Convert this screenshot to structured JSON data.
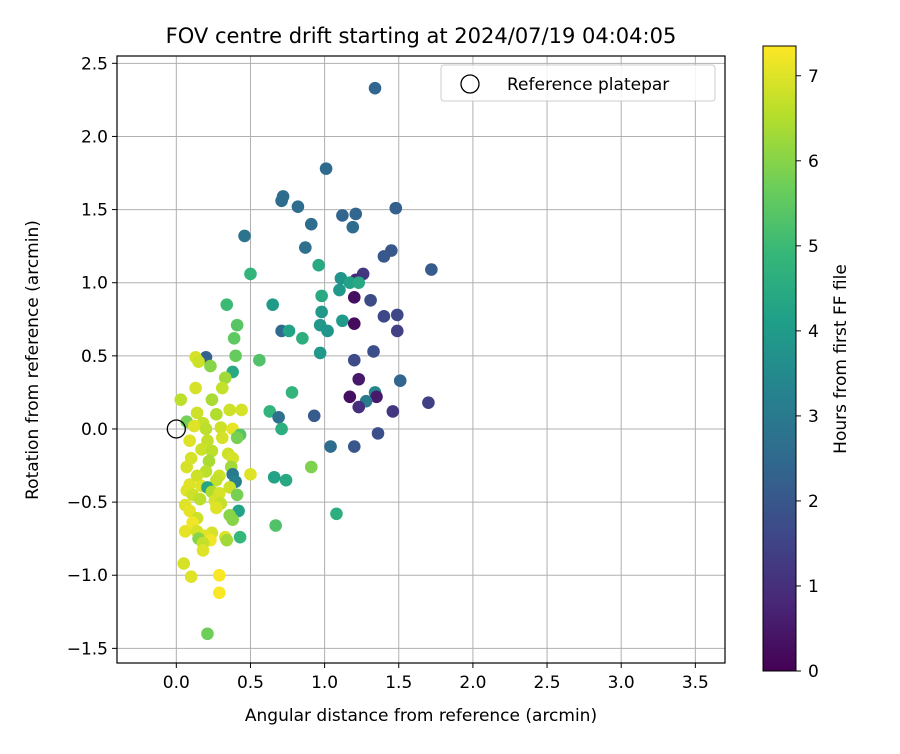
{
  "chart_data": {
    "type": "scatter",
    "title": "FOV centre drift starting at 2024/07/19 04:04:05",
    "xlabel": "Angular distance from reference (arcmin)",
    "ylabel": "Rotation from reference (arcmin)",
    "xlim": [
      -0.4,
      3.7
    ],
    "ylim": [
      -1.6,
      2.55
    ],
    "x_ticks": [
      0.0,
      0.5,
      1.0,
      1.5,
      2.0,
      2.5,
      3.0,
      3.5
    ],
    "x_tick_labels": [
      "0.0",
      "0.5",
      "1.0",
      "1.5",
      "2.0",
      "2.5",
      "3.0",
      "3.5"
    ],
    "y_ticks": [
      -1.5,
      -1.0,
      -0.5,
      0.0,
      0.5,
      1.0,
      1.5,
      2.0,
      2.5
    ],
    "y_tick_labels": [
      "−1.5",
      "−1.0",
      "−0.5",
      "0.0",
      "0.5",
      "1.0",
      "1.5",
      "2.0",
      "2.5"
    ],
    "grid": true,
    "legend": {
      "placement": "top-right",
      "entries": [
        "Reference platepar"
      ]
    },
    "reference_point": {
      "name": "Reference platepar",
      "x": 0.0,
      "y": 0.0
    },
    "colorbar": {
      "label": "Hours from first FF file",
      "range": [
        0,
        7.35
      ],
      "ticks": [
        0,
        1,
        2,
        3,
        4,
        5,
        6,
        7
      ],
      "tick_labels": [
        "0",
        "1",
        "2",
        "3",
        "4",
        "5",
        "6",
        "7"
      ],
      "colormap": "viridis",
      "colors": [
        "#440154",
        "#482878",
        "#3e4989",
        "#31688e",
        "#26828e",
        "#1f9e89",
        "#35b779",
        "#6ece58",
        "#b5de2b",
        "#fde725"
      ]
    },
    "points": [
      {
        "x": 1.34,
        "y": 2.33,
        "t": 2.4
      },
      {
        "x": 1.01,
        "y": 1.78,
        "t": 2.5
      },
      {
        "x": 0.72,
        "y": 1.59,
        "t": 2.6
      },
      {
        "x": 0.71,
        "y": 1.56,
        "t": 2.6
      },
      {
        "x": 0.82,
        "y": 1.52,
        "t": 2.6
      },
      {
        "x": 0.91,
        "y": 1.4,
        "t": 2.6
      },
      {
        "x": 1.12,
        "y": 1.46,
        "t": 2.4
      },
      {
        "x": 1.21,
        "y": 1.47,
        "t": 2.4
      },
      {
        "x": 1.48,
        "y": 1.51,
        "t": 2.2
      },
      {
        "x": 1.19,
        "y": 1.38,
        "t": 2.6
      },
      {
        "x": 0.46,
        "y": 1.32,
        "t": 2.8
      },
      {
        "x": 0.87,
        "y": 1.24,
        "t": 2.7
      },
      {
        "x": 1.45,
        "y": 1.22,
        "t": 2.0
      },
      {
        "x": 1.4,
        "y": 1.18,
        "t": 2.0
      },
      {
        "x": 0.96,
        "y": 1.12,
        "t": 4.4
      },
      {
        "x": 1.72,
        "y": 1.09,
        "t": 2.1
      },
      {
        "x": 1.26,
        "y": 1.06,
        "t": 1.2
      },
      {
        "x": 1.21,
        "y": 1.02,
        "t": 0.9
      },
      {
        "x": 1.11,
        "y": 1.03,
        "t": 3.8
      },
      {
        "x": 1.17,
        "y": 1.0,
        "t": 4.2
      },
      {
        "x": 1.23,
        "y": 1.0,
        "t": 4.4
      },
      {
        "x": 1.1,
        "y": 0.95,
        "t": 3.9
      },
      {
        "x": 1.2,
        "y": 0.9,
        "t": 0.3
      },
      {
        "x": 1.31,
        "y": 0.88,
        "t": 1.7
      },
      {
        "x": 0.98,
        "y": 0.91,
        "t": 4.4
      },
      {
        "x": 0.5,
        "y": 1.06,
        "t": 4.8
      },
      {
        "x": 0.34,
        "y": 0.85,
        "t": 5.0
      },
      {
        "x": 0.65,
        "y": 0.85,
        "t": 4.0
      },
      {
        "x": 0.98,
        "y": 0.8,
        "t": 3.9
      },
      {
        "x": 1.4,
        "y": 0.77,
        "t": 1.6
      },
      {
        "x": 1.49,
        "y": 0.78,
        "t": 1.6
      },
      {
        "x": 1.12,
        "y": 0.74,
        "t": 4.0
      },
      {
        "x": 1.2,
        "y": 0.72,
        "t": 0.2
      },
      {
        "x": 0.97,
        "y": 0.71,
        "t": 3.9
      },
      {
        "x": 1.02,
        "y": 0.67,
        "t": 3.8
      },
      {
        "x": 0.71,
        "y": 0.67,
        "t": 2.5
      },
      {
        "x": 0.76,
        "y": 0.67,
        "t": 4.2
      },
      {
        "x": 0.85,
        "y": 0.62,
        "t": 4.6
      },
      {
        "x": 1.49,
        "y": 0.67,
        "t": 1.4
      },
      {
        "x": 0.41,
        "y": 0.71,
        "t": 5.4
      },
      {
        "x": 0.39,
        "y": 0.62,
        "t": 5.5
      },
      {
        "x": 0.97,
        "y": 0.52,
        "t": 3.9
      },
      {
        "x": 1.33,
        "y": 0.53,
        "t": 1.8
      },
      {
        "x": 1.2,
        "y": 0.47,
        "t": 1.7
      },
      {
        "x": 0.4,
        "y": 0.5,
        "t": 5.6
      },
      {
        "x": 0.56,
        "y": 0.47,
        "t": 5.3
      },
      {
        "x": 0.2,
        "y": 0.49,
        "t": 2.3
      },
      {
        "x": 0.23,
        "y": 0.43,
        "t": 6.0
      },
      {
        "x": 0.38,
        "y": 0.39,
        "t": 4.4
      },
      {
        "x": 0.13,
        "y": 0.49,
        "t": 6.9
      },
      {
        "x": 0.15,
        "y": 0.46,
        "t": 6.8
      },
      {
        "x": 0.33,
        "y": 0.35,
        "t": 6.3
      },
      {
        "x": 1.23,
        "y": 0.34,
        "t": 0.5
      },
      {
        "x": 1.51,
        "y": 0.33,
        "t": 2.4
      },
      {
        "x": 0.31,
        "y": 0.28,
        "t": 6.7
      },
      {
        "x": 0.13,
        "y": 0.28,
        "t": 6.9
      },
      {
        "x": 0.78,
        "y": 0.25,
        "t": 4.8
      },
      {
        "x": 1.34,
        "y": 0.25,
        "t": 3.4
      },
      {
        "x": 1.17,
        "y": 0.22,
        "t": 0.3
      },
      {
        "x": 1.35,
        "y": 0.22,
        "t": 0.5
      },
      {
        "x": 1.7,
        "y": 0.18,
        "t": 1.4
      },
      {
        "x": 1.28,
        "y": 0.19,
        "t": 3.0
      },
      {
        "x": 0.03,
        "y": 0.2,
        "t": 6.6
      },
      {
        "x": 0.24,
        "y": 0.2,
        "t": 6.4
      },
      {
        "x": 1.23,
        "y": 0.15,
        "t": 1.0
      },
      {
        "x": 1.46,
        "y": 0.12,
        "t": 1.2
      },
      {
        "x": 0.63,
        "y": 0.12,
        "t": 4.8
      },
      {
        "x": 0.36,
        "y": 0.13,
        "t": 6.8
      },
      {
        "x": 0.44,
        "y": 0.13,
        "t": 6.9
      },
      {
        "x": 0.14,
        "y": 0.11,
        "t": 6.8
      },
      {
        "x": 0.27,
        "y": 0.1,
        "t": 6.5
      },
      {
        "x": 0.93,
        "y": 0.09,
        "t": 2.1
      },
      {
        "x": 0.69,
        "y": 0.08,
        "t": 2.7
      },
      {
        "x": 0.07,
        "y": 0.05,
        "t": 5.8
      },
      {
        "x": 0.18,
        "y": 0.04,
        "t": 6.7
      },
      {
        "x": 0.12,
        "y": 0.02,
        "t": 7.0
      },
      {
        "x": 0.2,
        "y": 0.0,
        "t": 6.6
      },
      {
        "x": 0.3,
        "y": 0.01,
        "t": 6.8
      },
      {
        "x": 0.38,
        "y": 0.0,
        "t": 7.1
      },
      {
        "x": 0.71,
        "y": 0.0,
        "t": 4.6
      },
      {
        "x": 0.43,
        "y": -0.04,
        "t": 5.4
      },
      {
        "x": 0.41,
        "y": -0.06,
        "t": 5.8
      },
      {
        "x": 1.36,
        "y": -0.03,
        "t": 1.8
      },
      {
        "x": 0.09,
        "y": -0.08,
        "t": 7.0
      },
      {
        "x": 0.21,
        "y": -0.08,
        "t": 6.7
      },
      {
        "x": 0.31,
        "y": -0.06,
        "t": 6.9
      },
      {
        "x": 1.04,
        "y": -0.12,
        "t": 2.6
      },
      {
        "x": 1.2,
        "y": -0.12,
        "t": 2.0
      },
      {
        "x": 0.17,
        "y": -0.14,
        "t": 6.8
      },
      {
        "x": 0.24,
        "y": -0.15,
        "t": 6.6
      },
      {
        "x": 0.35,
        "y": -0.17,
        "t": 6.8
      },
      {
        "x": 0.38,
        "y": -0.2,
        "t": 6.9
      },
      {
        "x": 0.1,
        "y": -0.2,
        "t": 6.9
      },
      {
        "x": 0.22,
        "y": -0.22,
        "t": 6.4
      },
      {
        "x": 0.07,
        "y": -0.26,
        "t": 6.9
      },
      {
        "x": 0.37,
        "y": -0.26,
        "t": 6.3
      },
      {
        "x": 0.91,
        "y": -0.26,
        "t": 5.9
      },
      {
        "x": 0.2,
        "y": -0.29,
        "t": 6.6
      },
      {
        "x": 0.5,
        "y": -0.31,
        "t": 7.0
      },
      {
        "x": 0.14,
        "y": -0.32,
        "t": 6.8
      },
      {
        "x": 0.29,
        "y": -0.32,
        "t": 6.8
      },
      {
        "x": 0.38,
        "y": -0.31,
        "t": 3.0
      },
      {
        "x": 0.66,
        "y": -0.33,
        "t": 4.2
      },
      {
        "x": 0.27,
        "y": -0.35,
        "t": 6.7
      },
      {
        "x": 0.4,
        "y": -0.36,
        "t": 3.2
      },
      {
        "x": 0.74,
        "y": -0.35,
        "t": 4.4
      },
      {
        "x": 0.09,
        "y": -0.38,
        "t": 7.0
      },
      {
        "x": 0.17,
        "y": -0.39,
        "t": 7.0
      },
      {
        "x": 0.21,
        "y": -0.4,
        "t": 4.3
      },
      {
        "x": 0.36,
        "y": -0.4,
        "t": 6.8
      },
      {
        "x": 0.07,
        "y": -0.42,
        "t": 7.0
      },
      {
        "x": 0.24,
        "y": -0.43,
        "t": 6.5
      },
      {
        "x": 0.29,
        "y": -0.44,
        "t": 6.9
      },
      {
        "x": 0.41,
        "y": -0.45,
        "t": 5.8
      },
      {
        "x": 0.11,
        "y": -0.45,
        "t": 6.8
      },
      {
        "x": 0.16,
        "y": -0.48,
        "t": 6.6
      },
      {
        "x": 0.26,
        "y": -0.49,
        "t": 6.9
      },
      {
        "x": 0.3,
        "y": -0.51,
        "t": 6.7
      },
      {
        "x": 0.06,
        "y": -0.52,
        "t": 7.0
      },
      {
        "x": 0.27,
        "y": -0.54,
        "t": 7.0
      },
      {
        "x": 0.09,
        "y": -0.56,
        "t": 7.1
      },
      {
        "x": 0.42,
        "y": -0.56,
        "t": 4.2
      },
      {
        "x": 0.36,
        "y": -0.59,
        "t": 6.0
      },
      {
        "x": 1.08,
        "y": -0.58,
        "t": 4.6
      },
      {
        "x": 0.14,
        "y": -0.61,
        "t": 6.8
      },
      {
        "x": 0.38,
        "y": -0.62,
        "t": 6.0
      },
      {
        "x": 0.11,
        "y": -0.64,
        "t": 7.2
      },
      {
        "x": 0.67,
        "y": -0.66,
        "t": 5.3
      },
      {
        "x": 0.06,
        "y": -0.7,
        "t": 7.1
      },
      {
        "x": 0.14,
        "y": -0.7,
        "t": 6.9
      },
      {
        "x": 0.24,
        "y": -0.71,
        "t": 6.9
      },
      {
        "x": 0.19,
        "y": -0.73,
        "t": 7.0
      },
      {
        "x": 0.33,
        "y": -0.74,
        "t": 7.0
      },
      {
        "x": 0.43,
        "y": -0.74,
        "t": 4.9
      },
      {
        "x": 0.15,
        "y": -0.75,
        "t": 6.0
      },
      {
        "x": 0.23,
        "y": -0.76,
        "t": 7.2
      },
      {
        "x": 0.34,
        "y": -0.76,
        "t": 6.3
      },
      {
        "x": 0.18,
        "y": -0.78,
        "t": 6.7
      },
      {
        "x": 0.18,
        "y": -0.83,
        "t": 7.0
      },
      {
        "x": 0.05,
        "y": -0.92,
        "t": 6.9
      },
      {
        "x": 0.29,
        "y": -1.0,
        "t": 7.3
      },
      {
        "x": 0.1,
        "y": -1.01,
        "t": 7.0
      },
      {
        "x": 0.29,
        "y": -1.12,
        "t": 7.3
      },
      {
        "x": 0.21,
        "y": -1.4,
        "t": 5.7
      }
    ]
  }
}
